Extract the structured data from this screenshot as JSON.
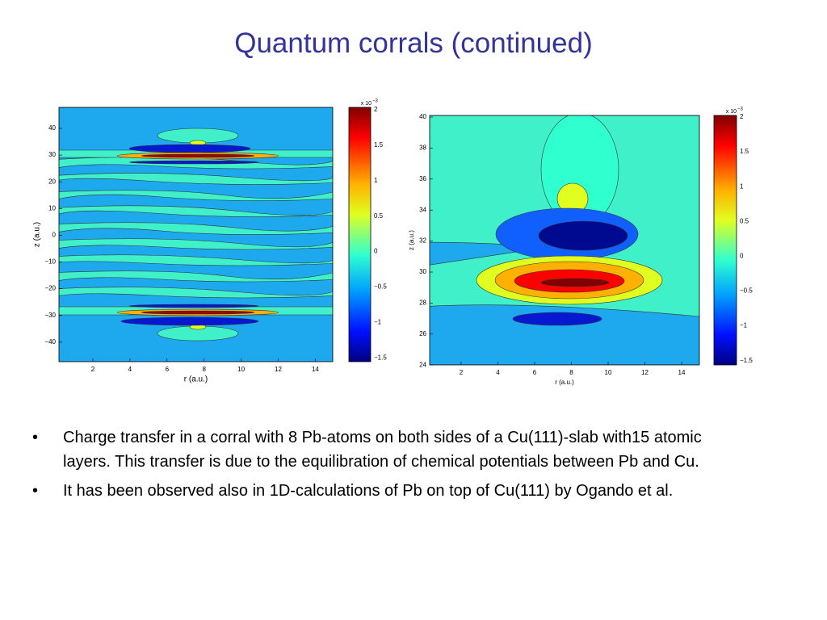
{
  "title": "Quantum corrals (continued)",
  "figures": [
    {
      "y_label": "z (a.u.)",
      "x_label": "r (a.u.)",
      "y_ticks": [
        "40",
        "30",
        "20",
        "10",
        "0",
        "−10",
        "−20",
        "−30",
        "−40"
      ],
      "x_ticks": [
        "2",
        "4",
        "6",
        "8",
        "10",
        "12",
        "14"
      ],
      "colorbar_base": "x 10",
      "colorbar_power": "−3",
      "colorbar_ticks": [
        "2",
        "1.5",
        "1",
        "0.5",
        "0",
        "−0.5",
        "−1",
        "−1.5"
      ]
    },
    {
      "y_label": "z (a.u.)",
      "x_label": "r (a.u.)",
      "y_ticks": [
        "40",
        "38",
        "36",
        "34",
        "32",
        "30",
        "28",
        "26",
        "24"
      ],
      "x_ticks": [
        "2",
        "4",
        "6",
        "8",
        "10",
        "12",
        "14"
      ],
      "colorbar_base": "x 10",
      "colorbar_power": "−3",
      "colorbar_ticks": [
        "2",
        "1.5",
        "1",
        "0.5",
        "0",
        "−0.5",
        "−1",
        "−1.5"
      ]
    }
  ],
  "bullets": [
    "Charge transfer in a corral with 8 Pb-atoms on both sides of a Cu(111)-slab with15 atomic layers. This transfer is due to the equilibration of chemical potentials between Pb and Cu.",
    "It has been  observed also in 1D-calculations of Pb on top of Cu(111) by Ogando et al."
  ]
}
